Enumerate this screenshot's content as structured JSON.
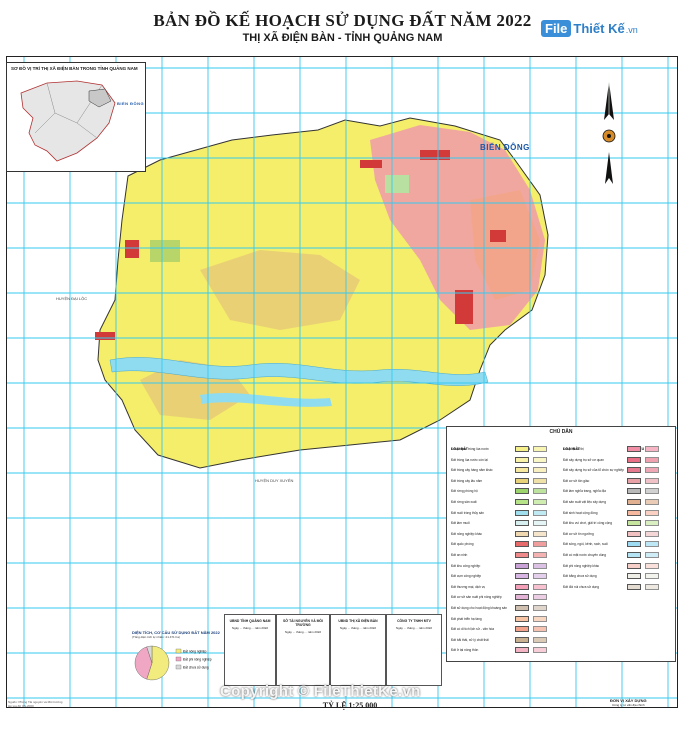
{
  "header": {
    "title": "BẢN ĐỒ KẾ HOẠCH SỬ DỤNG ĐẤT NĂM 2022",
    "subtitle": "THỊ XÃ ĐIỆN BÀN - TỈNH QUẢNG NAM"
  },
  "logo": {
    "file": "File",
    "rest": "Thiết Kế",
    "tld": ".vn"
  },
  "inset": {
    "title": "SƠ ĐỒ VỊ TRÍ THỊ XÃ ĐIỆN BÀN TRONG TỈNH QUẢNG NAM",
    "sea_label": "BIỂN ĐÔNG"
  },
  "map_labels": {
    "sea": "BIỂN ĐÔNG",
    "west": "HUYỆN ĐẠI LỘC",
    "south": "HUYỆN DUY XUYÊN"
  },
  "legend": {
    "title": "CHÚ DẪN",
    "col_left_head": "LOẠI ĐẤT",
    "col_right_head": "LOẠI ĐẤT",
    "sym_head": "KÍ HIỆU",
    "left_rows": [
      {
        "label": "Đất chuyên trồng lúa nước",
        "color": "#f5f08a"
      },
      {
        "label": "Đất trồng lúa nước còn lại",
        "color": "#f8f3a8"
      },
      {
        "label": "Đất trồng cây hàng năm khác",
        "color": "#f7e9a0"
      },
      {
        "label": "Đất trồng cây lâu năm",
        "color": "#e8d27a"
      },
      {
        "label": "Đất rừng phòng hộ",
        "color": "#9cd56b"
      },
      {
        "label": "Đất rừng sản xuất",
        "color": "#b6e388"
      },
      {
        "label": "Đất nuôi trồng thủy sản",
        "color": "#9fdfee"
      },
      {
        "label": "Đất làm muối",
        "color": "#d8efef"
      },
      {
        "label": "Đất nông nghiệp khác",
        "color": "#f0d8b0"
      },
      {
        "label": "Đất quốc phòng",
        "color": "#e86a6a"
      },
      {
        "label": "Đất an ninh",
        "color": "#f08a8a"
      },
      {
        "label": "Đất khu công nghiệp",
        "color": "#c9a2d8"
      },
      {
        "label": "Đất cụm công nghiệp",
        "color": "#d7b6e4"
      },
      {
        "label": "Đất thương mại, dịch vụ",
        "color": "#f4a0b8"
      },
      {
        "label": "Đất cơ sở sản xuất phi nông nghiệp",
        "color": "#e3b4d6"
      },
      {
        "label": "Đất sử dụng cho hoạt động khoáng sản",
        "color": "#d0c0b0"
      },
      {
        "label": "Đất phát triển hạ tầng",
        "color": "#f7c4a4"
      },
      {
        "label": "Đất có di tích lịch sử - văn hóa",
        "color": "#f2a28a"
      },
      {
        "label": "Đất bãi thải, xử lý chất thải",
        "color": "#c8b090"
      },
      {
        "label": "Đất ở tại nông thôn",
        "color": "#f4b3c2"
      }
    ],
    "right_rows": [
      {
        "label": "Đất ở tại đô thị",
        "color": "#f08fa6"
      },
      {
        "label": "Đất xây dựng trụ sở cơ quan",
        "color": "#e86f86"
      },
      {
        "label": "Đất xây dựng trụ sở của tổ chức sự nghiệp",
        "color": "#e5798d"
      },
      {
        "label": "Đất cơ sở tôn giáo",
        "color": "#e9a1a8"
      },
      {
        "label": "Đất làm nghĩa trang, nghĩa địa",
        "color": "#b9b9b9"
      },
      {
        "label": "Đất sản xuất vật liệu xây dựng",
        "color": "#e0b090"
      },
      {
        "label": "Đất sinh hoạt cộng đồng",
        "color": "#f7b8a0"
      },
      {
        "label": "Đất khu vui chơi, giải trí công cộng",
        "color": "#c6e6a0"
      },
      {
        "label": "Đất cơ sở tín ngưỡng",
        "color": "#f2c2c2"
      },
      {
        "label": "Đất sông, ngòi, kênh, rạch, suối",
        "color": "#9edcf4"
      },
      {
        "label": "Đất có mặt nước chuyên dùng",
        "color": "#b4e4f4"
      },
      {
        "label": "Đất phi nông nghiệp khác",
        "color": "#f6d0c8"
      },
      {
        "label": "Đất bằng chưa sử dụng",
        "color": "#efefe8"
      },
      {
        "label": "Đất đồi núi chưa sử dụng",
        "color": "#e4dcd0"
      }
    ]
  },
  "sign_boxes": [
    {
      "head": "UBND TỈNH QUẢNG NAM",
      "txt": "Ngày ... tháng ... năm 2022"
    },
    {
      "head": "SỞ TÀI NGUYÊN VÀ MÔI TRƯỜNG",
      "txt": "Ngày ... tháng ... năm 2022"
    },
    {
      "head": "UBND THỊ XÃ ĐIỆN BÀN",
      "txt": "Ngày ... tháng ... năm 2022"
    },
    {
      "head": "CÔNG TY TNHH MTV",
      "txt": "Ngày ... tháng ... năm 2022"
    }
  ],
  "pie": {
    "title": "DIỆN TÍCH, CƠ CẤU SỬ DỤNG ĐẤT NĂM 2022",
    "subtitle": "(Tổng diện tích tự nhiên: 21.471 ha)",
    "slices": [
      {
        "name": "Đất nông nghiệp",
        "value": 55,
        "color": "#f2ec7e"
      },
      {
        "name": "Đất phi nông nghiệp",
        "value": 40,
        "color": "#f0a7c4"
      },
      {
        "name": "Đất chưa sử dụng",
        "value": 5,
        "color": "#d9d9d9"
      }
    ]
  },
  "scale": "TỶ LỆ 1:25 000",
  "copyright": "Copyright © FileThietKe.vn",
  "notes": [
    "Nguồn: Phòng Tài nguyên và Môi trường",
    "Hệ tọa độ VN-2000"
  ],
  "footer_org": {
    "name": "ĐƠN VỊ XÂY DỰNG",
    "sub": "Công ty tư vấn địa chính"
  },
  "colors": {
    "grid": "#36c9f0",
    "rice": "#f4ee6a",
    "perennial": "#e9cc76",
    "residential": "#ef9aa9",
    "industrial": "#d23a3a",
    "river": "#8fdcf0",
    "salmon": "#f3a58b"
  },
  "icons": [
    "north-arrow-icon",
    "compass-rose-icon"
  ]
}
